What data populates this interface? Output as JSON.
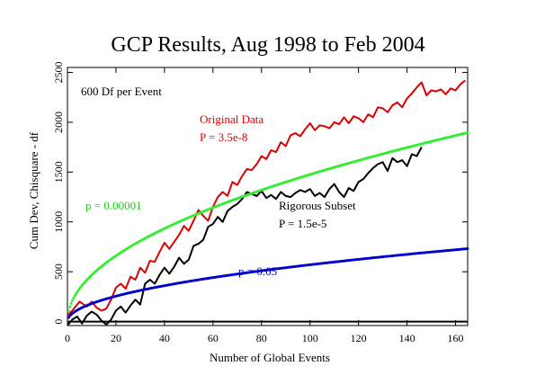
{
  "chart_data": {
    "type": "line",
    "title": "GCP Results, Aug 1998 to Feb 2004",
    "xlabel": "Number of Global Events",
    "ylabel": "Cum Dev, Chisquare - df",
    "xlim": [
      0,
      165
    ],
    "ylim": [
      -40,
      2550
    ],
    "x_ticks": [
      0,
      20,
      40,
      60,
      80,
      100,
      120,
      140,
      160
    ],
    "x_tick_labels": [
      "0",
      "20",
      "40",
      "60",
      "80",
      "100",
      "120",
      "140",
      "160"
    ],
    "y_ticks": [
      0,
      500,
      1000,
      1500,
      2000,
      2500
    ],
    "y_tick_labels": [
      "0",
      "500",
      "1000",
      "1500",
      "2000",
      "2500"
    ],
    "grid": false,
    "annotations": [
      {
        "text": "600 Df per Event",
        "color": "#000000"
      },
      {
        "text": "Original Data",
        "color": "#dd0000"
      },
      {
        "text": "P = 3.5e-8",
        "color": "#dd0000"
      },
      {
        "text": "Rigorous Subset",
        "color": "#000000"
      },
      {
        "text": "P = 1.5e-5",
        "color": "#000000"
      },
      {
        "text": "p = 0.00001",
        "color": "#22cc22"
      },
      {
        "text": "p = 0.05",
        "color": "#0000cc"
      }
    ],
    "series": [
      {
        "color": "#dd0000",
        "style": "solid",
        "x": [
          0,
          2,
          5,
          8,
          10,
          12,
          14,
          16,
          18,
          20,
          22,
          24,
          26,
          28,
          30,
          32,
          34,
          36,
          38,
          40,
          42,
          44,
          46,
          48,
          50,
          52,
          54,
          56,
          58,
          60,
          62,
          64,
          66,
          68,
          70,
          72,
          74,
          76,
          78,
          80,
          82,
          84,
          86,
          88,
          90,
          92,
          94,
          96,
          98,
          100,
          102,
          104,
          106,
          108,
          110,
          112,
          114,
          116,
          118,
          120,
          122,
          124,
          126,
          128,
          130,
          132,
          134,
          136,
          138,
          140,
          142,
          144,
          146,
          148,
          150,
          152,
          154,
          156,
          158,
          160,
          162,
          164
        ],
        "y": [
          60,
          110,
          200,
          150,
          200,
          140,
          110,
          130,
          220,
          340,
          380,
          330,
          450,
          420,
          540,
          490,
          610,
          600,
          700,
          790,
          730,
          800,
          870,
          960,
          910,
          1010,
          1120,
          1060,
          1010,
          1150,
          1250,
          1300,
          1260,
          1400,
          1370,
          1460,
          1530,
          1520,
          1580,
          1660,
          1630,
          1720,
          1700,
          1800,
          1760,
          1870,
          1890,
          1860,
          1930,
          1990,
          1920,
          1970,
          1960,
          1940,
          2000,
          1980,
          2050,
          1990,
          2060,
          2040,
          2000,
          2080,
          2050,
          2150,
          2140,
          2100,
          2170,
          2200,
          2150,
          2240,
          2290,
          2350,
          2400,
          2270,
          2320,
          2310,
          2330,
          2280,
          2340,
          2320,
          2380,
          2420
        ]
      },
      {
        "color": "#000000",
        "style": "solid",
        "x": [
          0,
          2,
          4,
          6,
          8,
          10,
          12,
          14,
          16,
          18,
          20,
          22,
          24,
          26,
          28,
          30,
          32,
          34,
          36,
          38,
          40,
          42,
          44,
          46,
          48,
          50,
          52,
          54,
          56,
          58,
          60,
          62,
          64,
          66,
          68,
          70,
          72,
          74,
          76,
          78,
          80,
          82,
          84,
          86,
          88,
          90,
          92,
          94,
          96,
          98,
          100,
          102,
          104,
          106,
          108,
          110,
          112,
          114,
          116,
          118,
          120,
          122,
          124,
          126,
          128,
          130,
          132,
          134,
          136,
          138,
          140,
          142,
          144,
          146
        ],
        "y": [
          -40,
          20,
          50,
          -20,
          60,
          100,
          70,
          10,
          -30,
          20,
          110,
          150,
          90,
          160,
          220,
          170,
          380,
          420,
          380,
          470,
          540,
          480,
          550,
          640,
          580,
          620,
          760,
          780,
          820,
          950,
          980,
          1050,
          1000,
          1110,
          1150,
          1180,
          1230,
          1300,
          1280,
          1260,
          1310,
          1240,
          1270,
          1230,
          1300,
          1260,
          1250,
          1290,
          1320,
          1300,
          1330,
          1260,
          1290,
          1250,
          1330,
          1380,
          1300,
          1250,
          1340,
          1310,
          1400,
          1430,
          1490,
          1540,
          1580,
          1600,
          1510,
          1640,
          1600,
          1620,
          1560,
          1680,
          1660,
          1750
        ]
      },
      {
        "color": "#33ee33",
        "style": "dotted",
        "label": "p = 0.00001",
        "function": "4.26*sqrt(1200*x)",
        "x_range": [
          0.5,
          165
        ]
      },
      {
        "color": "#0000cc",
        "style": "dotted",
        "label": "p = 0.05",
        "function": "1.645*sqrt(1200*x)",
        "x_range": [
          0.5,
          165
        ]
      }
    ]
  }
}
